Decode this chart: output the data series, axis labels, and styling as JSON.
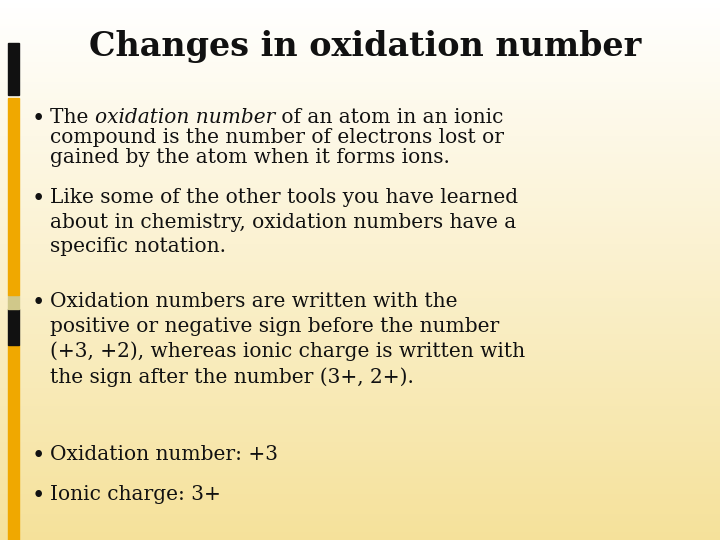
{
  "title": "Changes in oxidation number",
  "title_fontsize": 24,
  "body_fontsize": 14.5,
  "background_top": "#ffffff",
  "background_bottom": "#f5e19a",
  "text_color": "#111111",
  "left_bar_black": "#111111",
  "left_bar_orange": "#f0a800",
  "left_bar_gray": "#d0c88a",
  "bullet_char": "•",
  "bullet1_pre": "The ",
  "bullet1_italic": "oxidation number",
  "bullet1_post": " of an atom in an ionic",
  "bullet1_line2": "compound is the number of electrons lost or",
  "bullet1_line3": "gained by the atom when it forms ions.",
  "bullet2": "Like some of the other tools you have learned\nabout in chemistry, oxidation numbers have a\nspecific notation.",
  "bullet3": "Oxidation numbers are written with the\npositive or negative sign before the number\n(+3, +2), whereas ionic charge is written with\nthe sign after the number (3+, 2+).",
  "bullet4": "Oxidation number: +3",
  "bullet5": "Ionic charge: 3+"
}
